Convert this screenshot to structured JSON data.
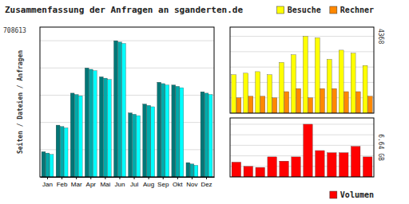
{
  "chart_data": [
    {
      "type": "bar",
      "title": "Zusammenfassung der Anfragen an sganderten.de",
      "ylabel": "Seiten / Dateien / Anfragen",
      "annotations": [
        "708613"
      ],
      "categories": [
        "Jan",
        "Feb",
        "Mar",
        "Apr",
        "Mai",
        "Jun",
        "Jul",
        "Aug",
        "Sep",
        "Okt",
        "Nov",
        "Dez"
      ],
      "series": [
        {
          "color": "#007777",
          "values": [
            0.185,
            0.38,
            0.615,
            0.8,
            0.735,
            1.0,
            0.47,
            0.535,
            0.695,
            0.675,
            0.105,
            0.625
          ]
        },
        {
          "color": "#00aaaa",
          "values": [
            0.175,
            0.37,
            0.605,
            0.79,
            0.725,
            0.99,
            0.46,
            0.525,
            0.685,
            0.665,
            0.095,
            0.615
          ]
        },
        {
          "color": "#00ffff",
          "values": [
            0.165,
            0.36,
            0.595,
            0.78,
            0.715,
            0.98,
            0.45,
            0.515,
            0.675,
            0.655,
            0.085,
            0.605
          ]
        }
      ],
      "ylim": [
        0,
        1.1
      ],
      "yticks": [
        0,
        0.2,
        0.4,
        0.6,
        0.8,
        1.0
      ],
      "grid": true,
      "tick_labels": "x"
    },
    {
      "type": "bar",
      "annotations": [
        "4368"
      ],
      "categories": [
        null,
        null,
        null,
        null,
        null,
        null,
        null,
        null,
        null,
        null,
        null,
        null
      ],
      "series": [
        {
          "name": "Besuche",
          "color": "#ffff00",
          "values": [
            0.5,
            0.52,
            0.54,
            0.5,
            0.66,
            0.76,
            1.0,
            0.98,
            0.7,
            0.82,
            0.78,
            0.62
          ]
        },
        {
          "name": "Rechner",
          "color": "#ff8800",
          "values": [
            0.2,
            0.22,
            0.22,
            0.2,
            0.28,
            0.32,
            0.2,
            0.32,
            0.32,
            0.28,
            0.28,
            0.22
          ]
        }
      ],
      "ylim": [
        0,
        1.12
      ],
      "yticks": [
        0,
        0.2,
        0.4,
        0.6,
        0.8,
        1.0
      ],
      "grid": true,
      "tick_labels": false,
      "legend": "top"
    },
    {
      "type": "bar",
      "annotations": [
        "6.64 GB"
      ],
      "categories": [
        null,
        null,
        null,
        null,
        null,
        null,
        null,
        null,
        null,
        null,
        null,
        null
      ],
      "series": [
        {
          "name": "Volumen",
          "color": "#ff0000",
          "values": [
            0.28,
            0.2,
            0.18,
            0.38,
            0.3,
            0.38,
            1.0,
            0.5,
            0.46,
            0.46,
            0.58,
            0.38
          ]
        }
      ],
      "ylim": [
        0,
        1.12
      ],
      "yticks": [
        0,
        0.2,
        0.4,
        0.6,
        0.8,
        1.0
      ],
      "grid": true,
      "tick_labels": false,
      "legend": "bottom-right"
    }
  ]
}
